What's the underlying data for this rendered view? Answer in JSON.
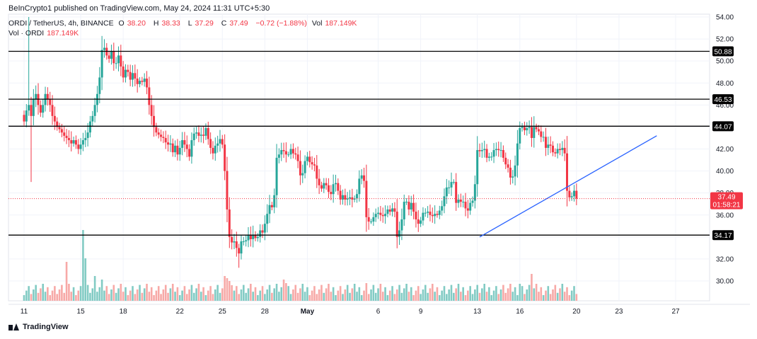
{
  "header": {
    "published": "BeInCrypto1 published on TradingView.com, May 24, 2024 11:31 UTC+5:30",
    "symbol": "ORDI / TetherUS, 4h, BINANCE",
    "o_label": "O",
    "o_val": "38.20",
    "h_label": "H",
    "h_val": "38.33",
    "l_label": "L",
    "l_val": "37.29",
    "c_label": "C",
    "c_val": "37.49",
    "change": "−0.72 (−1.88%)",
    "vol_label": "Vol",
    "vol_val": "187.149K",
    "vol_series_label": "Vol · ORDI",
    "vol_series_val": "187.149K"
  },
  "footer": {
    "brand": "TradingView"
  },
  "colors": {
    "up": "#26a69a",
    "down": "#f23645",
    "trend": "#2962ff",
    "level": "#000000",
    "up_vol": "#82cbc4",
    "down_vol": "#f7a9a7"
  },
  "chart_data": {
    "type": "candlestick",
    "ylim": [
      29.0,
      54.0
    ],
    "y_ticks": [
      "30.00",
      "32.00",
      "34.00",
      "36.00",
      "38.00",
      "40.00",
      "42.00",
      "44.00",
      "46.00",
      "48.00",
      "50.00",
      "52.00",
      "54.00"
    ],
    "x_ticks": [
      {
        "label": "11",
        "bar": 0
      },
      {
        "label": "15",
        "bar": 24
      },
      {
        "label": "18",
        "bar": 42
      },
      {
        "label": "22",
        "bar": 66
      },
      {
        "label": "25",
        "bar": 84
      },
      {
        "label": "28",
        "bar": 102
      },
      {
        "label": "May",
        "bar": 120
      },
      {
        "label": "6",
        "bar": 150
      },
      {
        "label": "9",
        "bar": 168
      },
      {
        "label": "13",
        "bar": 192
      },
      {
        "label": "16",
        "bar": 210
      },
      {
        "label": "20",
        "bar": 234
      },
      {
        "label": "23",
        "bar": 252
      },
      {
        "label": "27",
        "bar": 276
      }
    ],
    "levels": [
      50.88,
      46.53,
      44.07,
      34.17
    ],
    "last_price": 37.49,
    "countdown": "01:58:21",
    "trendline": {
      "from": {
        "bar": 193,
        "price": 34.0
      },
      "to": {
        "bar": 268,
        "price": 43.2
      }
    },
    "close_series": [
      44.5,
      45.5,
      46.0,
      45.0,
      46.5,
      47.0,
      46.0,
      45.3,
      46.0,
      47.0,
      46.5,
      46.0,
      45.0,
      44.5,
      44.0,
      43.8,
      43.5,
      43.2,
      43.0,
      42.8,
      42.5,
      42.8,
      42.4,
      42.0,
      42.4,
      42.8,
      43.0,
      43.5,
      44.5,
      45.0,
      46.0,
      47.0,
      48.5,
      51.0,
      51.2,
      50.5,
      50.2,
      50.9,
      49.8,
      49.8,
      50.5,
      49.5,
      48.5,
      49.2,
      49.0,
      48.3,
      48.9,
      48.4,
      47.9,
      48.2,
      48.1,
      48.4,
      47.6,
      46.0,
      45.0,
      44.0,
      43.5,
      43.3,
      43.1,
      43.0,
      42.6,
      42.4,
      42.5,
      41.7,
      42.3,
      41.5,
      42.1,
      42.8,
      42.4,
      42.0,
      41.3,
      42.8,
      43.4,
      43.5,
      43.2,
      43.3,
      43.2,
      43.9,
      42.9,
      42.1,
      41.6,
      42.3,
      42.5,
      42.9,
      42.4,
      40.0,
      36.5,
      34.0,
      33.5,
      33.6,
      33.0,
      32.5,
      33.6,
      33.6,
      33.7,
      34.2,
      33.8,
      34.2,
      33.9,
      34.0,
      34.6,
      34.4,
      35.2,
      36.1,
      36.9,
      36.7,
      37.8,
      41.2,
      41.5,
      41.9,
      41.8,
      41.5,
      41.5,
      42.0,
      41.6,
      41.5,
      40.9,
      39.6,
      39.8,
      40.9,
      41.3,
      40.8,
      40.6,
      40.5,
      39.3,
      38.7,
      38.4,
      38.9,
      38.7,
      38.1,
      37.9,
      38.8,
      38.9,
      38.2,
      37.4,
      37.8,
      37.4,
      37.5,
      37.6,
      37.4,
      37.5,
      37.9,
      39.3,
      39.6,
      39.1,
      35.8,
      35.4,
      35.4,
      35.8,
      36.1,
      36.2,
      36.0,
      35.9,
      36.1,
      36.5,
      36.3,
      36.6,
      36.3,
      34.0,
      34.6,
      35.6,
      37.2,
      37.2,
      36.5,
      37.1,
      36.3,
      35.6,
      35.2,
      35.5,
      36.2,
      36.2,
      36.3,
      36.0,
      35.9,
      36.1,
      36.0,
      36.4,
      36.8,
      37.7,
      38.5,
      38.5,
      39.0,
      39.0,
      37.1,
      37.4,
      37.2,
      37.2,
      36.6,
      36.4,
      37.1,
      37.3,
      38.8,
      41.9,
      41.8,
      41.9,
      42.0,
      41.2,
      41.3,
      41.3,
      41.9,
      42.0,
      41.9,
      41.9,
      41.2,
      40.6,
      40.3,
      39.4,
      39.5,
      40.5,
      42.5,
      43.9,
      44.0,
      43.7,
      43.9,
      44.0,
      43.0,
      44.0,
      43.8,
      43.6,
      43.1,
      43.1,
      42.1,
      42.4,
      42.3,
      41.7,
      41.6,
      42.0,
      41.9,
      42.1,
      41.6,
      38.2,
      37.6,
      37.7,
      38.2,
      37.49
    ],
    "volume_peaks": [
      {
        "bar": 25,
        "value": 100
      },
      {
        "bar": 26,
        "value": 60
      },
      {
        "bar": 18,
        "value": 55
      },
      {
        "bar": 30,
        "value": 35
      },
      {
        "bar": 33,
        "value": 30
      },
      {
        "bar": 85,
        "value": 35
      },
      {
        "bar": 86,
        "value": 32
      },
      {
        "bar": 87,
        "value": 28
      },
      {
        "bar": 88,
        "value": 22
      },
      {
        "bar": 110,
        "value": 30
      },
      {
        "bar": 111,
        "value": 25
      },
      {
        "bar": 145,
        "value": 25
      },
      {
        "bar": 210,
        "value": 24
      },
      {
        "bar": 215,
        "value": 38
      },
      {
        "bar": 245,
        "value": 30
      },
      {
        "bar": 255,
        "value": 22
      }
    ]
  }
}
